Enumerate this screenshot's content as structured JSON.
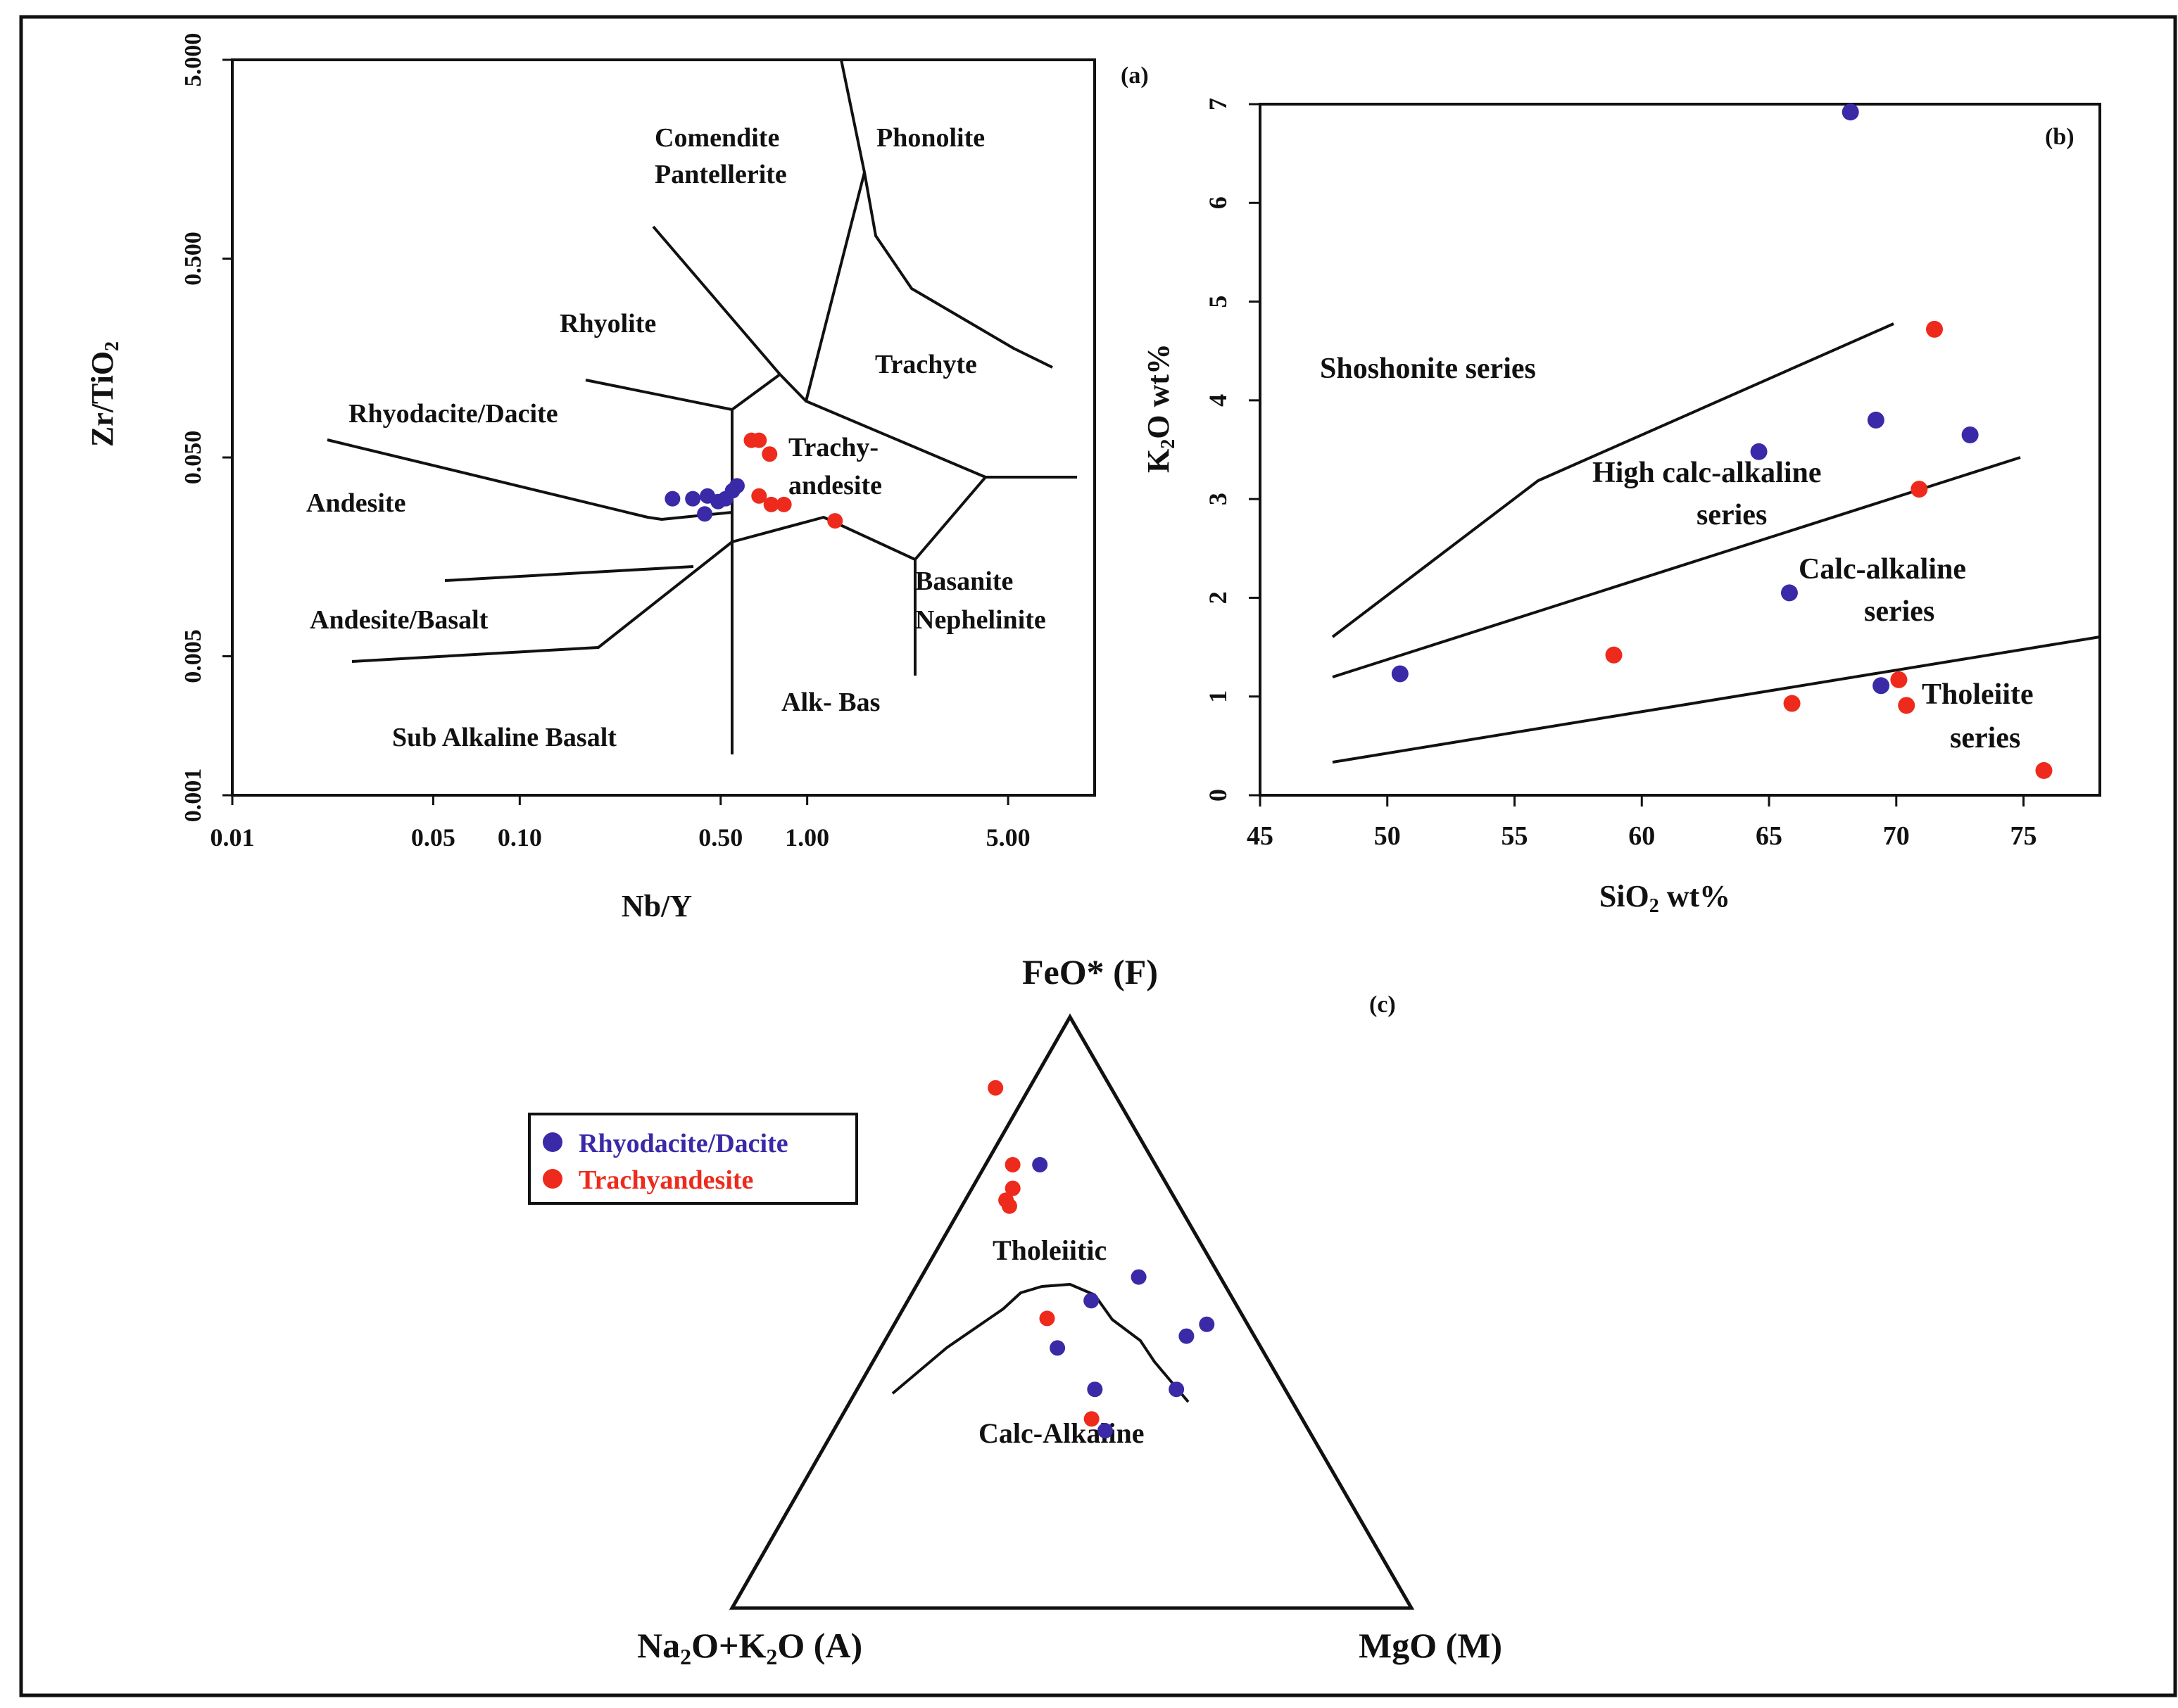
{
  "legend": {
    "items": [
      {
        "label": "Rhyodacite/Dacite",
        "color": "#3a2aa8"
      },
      {
        "label": "Trachyandesite",
        "color": "#ee2a1c"
      }
    ]
  },
  "chart_data": [
    {
      "panel_label": "(a)",
      "type": "scatter",
      "xlabel": "Nb/Y",
      "ylabel": "Zr/TiO2",
      "xscale": "log",
      "yscale": "log",
      "xlim": [
        0.01,
        10
      ],
      "ylim": [
        0.001,
        5
      ],
      "x_tick_labels": [
        "0.01",
        "0.05",
        "0.10",
        "0.50",
        "1.00",
        "5.00"
      ],
      "y_tick_labels": [
        "0.001",
        "0.005",
        "0.050",
        "0.500",
        "5.000"
      ],
      "field_labels": [
        "Comendite",
        "Pantellerite",
        "Phonolite",
        "Rhyolite",
        "Trachyte",
        "Rhyodacite/Dacite",
        "Trachy-",
        "andesite",
        "Andesite",
        "Andesite/Basalt",
        "Basanite",
        "Nephelinite",
        "Alk- Bas",
        "Sub Alkaline Basalt"
      ],
      "series": [
        {
          "name": "Rhyodacite/Dacite",
          "color": "#3a2aa8",
          "points": [
            [
              0.34,
              0.031
            ],
            [
              0.4,
              0.031
            ],
            [
              0.45,
              0.032
            ],
            [
              0.49,
              0.03
            ],
            [
              0.52,
              0.031
            ],
            [
              0.55,
              0.034
            ],
            [
              0.57,
              0.036
            ],
            [
              0.44,
              0.026
            ]
          ]
        },
        {
          "name": "Trachyandesite",
          "color": "#ee2a1c",
          "points": [
            [
              0.64,
              0.061
            ],
            [
              0.68,
              0.061
            ],
            [
              0.74,
              0.052
            ],
            [
              0.68,
              0.032
            ],
            [
              0.75,
              0.029
            ],
            [
              0.83,
              0.029
            ],
            [
              1.25,
              0.024
            ]
          ]
        }
      ]
    },
    {
      "panel_label": "(b)",
      "type": "scatter",
      "xlabel": "SiO2 wt%",
      "ylabel": "K2O wt%",
      "xlim": [
        45,
        78
      ],
      "ylim": [
        0,
        7
      ],
      "x_ticks": [
        45,
        50,
        55,
        60,
        65,
        70,
        75
      ],
      "y_ticks": [
        0,
        1,
        2,
        3,
        4,
        5,
        6,
        7
      ],
      "field_labels": [
        "Shoshonite series",
        "High calc-alkaline",
        "series",
        "Calc-alkaline",
        "series",
        "Tholeiite",
        "series"
      ],
      "series": [
        {
          "name": "Rhyodacite/Dacite",
          "color": "#3a2aa8",
          "points": [
            [
              50.5,
              1.23
            ],
            [
              64.6,
              3.48
            ],
            [
              65.8,
              2.05
            ],
            [
              68.2,
              6.92
            ],
            [
              69.2,
              3.8
            ],
            [
              69.4,
              1.11
            ],
            [
              72.9,
              3.65
            ]
          ]
        },
        {
          "name": "Trachyandesite",
          "color": "#ee2a1c",
          "points": [
            [
              58.9,
              1.42
            ],
            [
              65.9,
              0.93
            ],
            [
              70.1,
              1.17
            ],
            [
              70.4,
              0.91
            ],
            [
              70.9,
              3.1
            ],
            [
              71.5,
              4.72
            ],
            [
              75.8,
              0.25
            ]
          ]
        }
      ]
    },
    {
      "panel_label": "(c)",
      "type": "scatter",
      "subtype": "ternary-AFM",
      "apex_labels": {
        "top": "FeO* (F)",
        "left": "Na2O+K2O (A)",
        "right": "MgO (M)"
      },
      "field_labels": [
        "Tholeiitic",
        "Calc-Alkaline"
      ],
      "series": [
        {
          "name": "Rhyodacite/Dacite",
          "color": "#3a2aa8",
          "points": [
            [
              [
                0.174,
                0.56
              ],
              [
                0.12,
                0.42
              ]
            ],
            [
              [
                0.219,
                0.74
              ],
              [
                0.104,
                0.452
              ]
            ],
            [
              [
                0.137,
                0.52
              ],
              [
                0.134,
                0.562
              ]
            ],
            [
              [
                0.104,
                0.38
              ],
              [
                0.137,
                0.483
              ]
            ],
            [
              [
                0.081,
                0.35
              ],
              [
                0.131,
                0.386
              ]
            ],
            [
              [
                0.095,
                0.36
              ],
              [
                0.174,
                0.387
              ]
            ]
          ]
        }
      ],
      "series_fe_note": "",
      "series_points_format": "",
      "series_red_note": "",
      "series_red_points": [],
      "series_red": {
        "name": "Trachyandesite",
        "color": "#ee2a1c"
      }
    }
  ]
}
